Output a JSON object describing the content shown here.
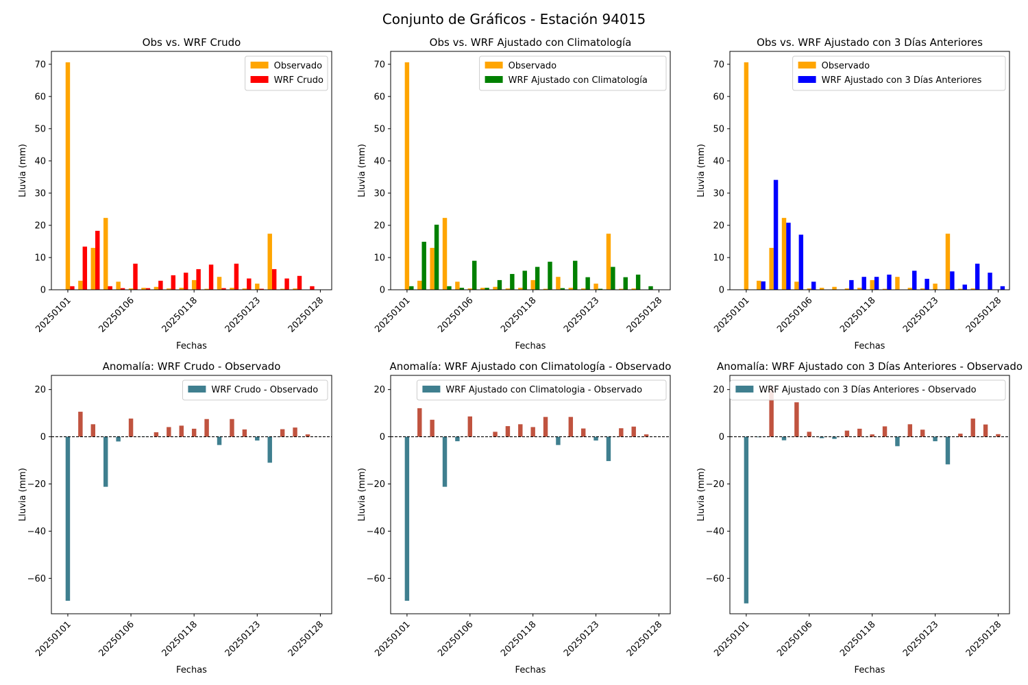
{
  "suptitle": "Conjunto de Gráficos - Estación 94015",
  "colors": {
    "observed": "#ffa500",
    "wrf_raw": "#ff0000",
    "wrf_clim": "#008000",
    "wrf_3d": "#0000ff",
    "anom_negative": "#3f7f8f",
    "anom_positive": "#c0533f",
    "legend_anom_swatch": "#3f7f8f"
  },
  "chart_data": [
    {
      "type": "bar",
      "title": "Obs vs. WRF Crudo",
      "xlabel": "Fechas",
      "ylabel": "Lluvia (mm)",
      "tick_labels": [
        "20250101",
        "20250106",
        "20250118",
        "20250123",
        "20250128"
      ],
      "tick_positions": [
        0,
        5,
        10,
        15,
        20
      ],
      "ylim": [
        0,
        74
      ],
      "yticks": [
        0,
        10,
        20,
        30,
        40,
        50,
        60,
        70
      ],
      "legend": "top-right",
      "series": [
        {
          "name": "Observado",
          "color_key": "observed",
          "values": [
            70.6,
            2.8,
            13.0,
            22.3,
            2.5,
            0.4,
            0.6,
            0.9,
            0.4,
            0.6,
            3.0,
            0.3,
            4.0,
            0.6,
            0.4,
            1.9,
            17.4,
            0.3,
            0.4,
            0.1,
            0.0
          ]
        },
        {
          "name": "WRF Crudo",
          "color_key": "wrf_raw",
          "values": [
            1.1,
            13.4,
            18.3,
            1.1,
            0.5,
            8.1,
            0.5,
            2.8,
            4.5,
            5.3,
            6.4,
            7.8,
            0.5,
            8.1,
            3.5,
            0.3,
            6.4,
            3.5,
            4.3,
            1.1,
            0.0
          ]
        }
      ]
    },
    {
      "type": "bar",
      "title": "Obs vs. WRF Ajustado con Climatología",
      "xlabel": "Fechas",
      "ylabel": "Lluvia (mm)",
      "tick_labels": [
        "20250101",
        "20250106",
        "20250118",
        "20250123",
        "20250128"
      ],
      "tick_positions": [
        0,
        5,
        10,
        15,
        20
      ],
      "ylim": [
        0,
        74
      ],
      "yticks": [
        0,
        10,
        20,
        30,
        40,
        50,
        60,
        70
      ],
      "legend": "top-right",
      "series": [
        {
          "name": "Observado",
          "color_key": "observed",
          "values": [
            70.6,
            2.8,
            13.0,
            22.3,
            2.5,
            0.4,
            0.6,
            0.9,
            0.4,
            0.6,
            3.0,
            0.3,
            4.0,
            0.6,
            0.4,
            1.9,
            17.4,
            0.3,
            0.4,
            0.1,
            0.0
          ]
        },
        {
          "name": "WRF Ajustado con Climatología",
          "color_key": "wrf_clim",
          "values": [
            1.1,
            14.9,
            20.2,
            1.1,
            0.6,
            9.0,
            0.6,
            3.0,
            4.9,
            5.9,
            7.1,
            8.7,
            0.5,
            9.0,
            3.9,
            0.3,
            7.1,
            3.9,
            4.7,
            1.1,
            0.0
          ]
        }
      ]
    },
    {
      "type": "bar",
      "title": "Obs vs. WRF Ajustado con 3 Días Anteriores",
      "xlabel": "Fechas",
      "ylabel": "Lluvia (mm)",
      "tick_labels": [
        "20250101",
        "20250106",
        "20250118",
        "20250123",
        "20250128"
      ],
      "tick_positions": [
        0,
        5,
        10,
        15,
        20
      ],
      "ylim": [
        0,
        74
      ],
      "yticks": [
        0,
        10,
        20,
        30,
        40,
        50,
        60,
        70
      ],
      "legend": "top-right",
      "series": [
        {
          "name": "Observado",
          "color_key": "observed",
          "values": [
            70.6,
            2.8,
            13.0,
            22.3,
            2.5,
            0.4,
            0.6,
            0.9,
            0.4,
            0.6,
            3.0,
            0.3,
            4.0,
            0.6,
            0.4,
            1.9,
            17.4,
            0.3,
            0.4,
            0.1,
            0.0
          ]
        },
        {
          "name": "WRF Ajustado con 3 Días Anteriores",
          "color_key": "wrf_3d",
          "values": [
            0.0,
            2.6,
            34.1,
            20.8,
            17.1,
            2.5,
            0.0,
            0.0,
            3.0,
            4.0,
            4.0,
            4.7,
            0.0,
            5.9,
            3.4,
            0.0,
            5.7,
            1.6,
            8.1,
            5.3,
            1.1
          ]
        }
      ]
    },
    {
      "type": "bar",
      "title": "Anomalía: WRF Crudo - Observado",
      "xlabel": "Fechas",
      "ylabel": "Lluvia (mm)",
      "tick_labels": [
        "20250101",
        "20250106",
        "20250118",
        "20250123",
        "20250128"
      ],
      "tick_positions": [
        0,
        5,
        10,
        15,
        20
      ],
      "ylim": [
        -75,
        26
      ],
      "yticks": [
        -60,
        -40,
        -20,
        0,
        20
      ],
      "zero_line": true,
      "legend": "top-right",
      "series": [
        {
          "name": "WRF Crudo - Observado",
          "values": [
            -69.5,
            10.6,
            5.3,
            -21.2,
            -2.0,
            7.7,
            -0.1,
            1.9,
            4.1,
            4.7,
            3.4,
            7.5,
            -3.5,
            7.5,
            3.1,
            -1.6,
            -11.0,
            3.2,
            3.9,
            1.0,
            0.0
          ]
        }
      ]
    },
    {
      "type": "bar",
      "title": "Anomalía: WRF Ajustado con Climatología - Observado",
      "xlabel": "Fechas",
      "ylabel": "Lluvia (mm)",
      "tick_labels": [
        "20250101",
        "20250106",
        "20250118",
        "20250123",
        "20250128"
      ],
      "tick_positions": [
        0,
        5,
        10,
        15,
        20
      ],
      "ylim": [
        -75,
        26
      ],
      "yticks": [
        -60,
        -40,
        -20,
        0,
        20
      ],
      "zero_line": true,
      "legend": "top-right",
      "series": [
        {
          "name": "WRF Ajustado con Climatologia - Observado",
          "values": [
            -69.5,
            12.1,
            7.2,
            -21.2,
            -1.9,
            8.6,
            0.0,
            2.1,
            4.5,
            5.3,
            4.1,
            8.4,
            -3.5,
            8.4,
            3.5,
            -1.6,
            -10.3,
            3.6,
            4.3,
            1.0,
            0.0
          ]
        }
      ]
    },
    {
      "type": "bar",
      "title": "Anomalía: WRF Ajustado con 3 Días Anteriores - Observado",
      "xlabel": "Fechas",
      "ylabel": "Lluvia (mm)",
      "tick_labels": [
        "20250101",
        "20250106",
        "20250118",
        "20250123",
        "20250128"
      ],
      "tick_positions": [
        0,
        5,
        10,
        15,
        20
      ],
      "ylim": [
        -75,
        26
      ],
      "yticks": [
        -60,
        -40,
        -20,
        0,
        20
      ],
      "zero_line": true,
      "legend": "top-right",
      "series": [
        {
          "name": "WRF Ajustado con 3 Días Anteriores - Observado",
          "values": [
            -70.6,
            -0.2,
            21.1,
            -1.5,
            14.6,
            2.1,
            -0.6,
            -0.9,
            2.6,
            3.4,
            1.0,
            4.4,
            -4.0,
            5.3,
            3.0,
            -1.9,
            -11.7,
            1.3,
            7.7,
            5.2,
            1.1
          ]
        }
      ]
    }
  ]
}
